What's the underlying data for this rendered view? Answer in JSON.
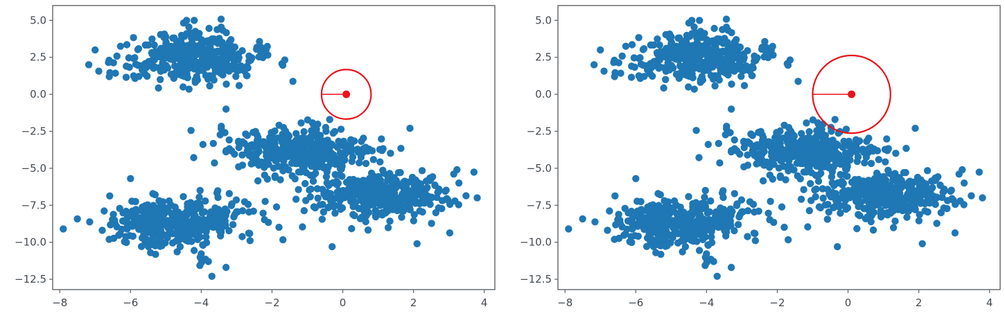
{
  "chart_data": [
    {
      "type": "scatter",
      "title": "",
      "xlabel": "",
      "ylabel": "",
      "xlim": [
        -8.2,
        4.3
      ],
      "ylim": [
        -13.2,
        6.0
      ],
      "xticks": [
        "−8",
        "−6",
        "−4",
        "−2",
        "0",
        "2",
        "4"
      ],
      "xtick_values": [
        -8,
        -6,
        -4,
        -2,
        0,
        2,
        4
      ],
      "yticks": [
        "5.0",
        "2.5",
        "0.0",
        "−2.5",
        "−5.0",
        "−7.5",
        "−10.0",
        "−12.5"
      ],
      "ytick_values": [
        5.0,
        2.5,
        0.0,
        -2.5,
        -5.0,
        -7.5,
        -10.0,
        -12.5
      ],
      "grid": false,
      "marker_color": "#1f77b4",
      "clusters": [
        {
          "center": [
            -4.3,
            2.5
          ],
          "spread": [
            1.0,
            0.85
          ],
          "count": 380
        },
        {
          "center": [
            -1.2,
            -3.9
          ],
          "spread": [
            1.0,
            0.85
          ],
          "count": 380
        },
        {
          "center": [
            1.0,
            -6.8
          ],
          "spread": [
            1.0,
            0.85
          ],
          "count": 380
        },
        {
          "center": [
            -4.6,
            -8.6
          ],
          "spread": [
            1.0,
            0.85
          ],
          "count": 380
        }
      ],
      "notable_points": [
        [
          -7.9,
          -9.1
        ],
        [
          -7.0,
          3.0
        ],
        [
          -6.6,
          1.2
        ],
        [
          -4.2,
          5.0
        ],
        [
          3.8,
          -7.0
        ],
        [
          -3.7,
          -12.3
        ],
        [
          -0.3,
          -10.3
        ],
        [
          2.1,
          -10.1
        ],
        [
          1.9,
          -2.3
        ],
        [
          -3.3,
          -1.0
        ],
        [
          -3.8,
          -11.3
        ],
        [
          -3.3,
          -11.7
        ],
        [
          -6.0,
          -5.7
        ]
      ],
      "query_point": {
        "x": 0.1,
        "y": 0.0,
        "radius": 0.7,
        "color": "#e8141c"
      }
    },
    {
      "type": "scatter",
      "title": "",
      "xlabel": "",
      "ylabel": "",
      "xlim": [
        -8.2,
        4.3
      ],
      "ylim": [
        -13.2,
        6.0
      ],
      "xticks": [
        "−8",
        "−6",
        "−4",
        "−2",
        "0",
        "2",
        "4"
      ],
      "xtick_values": [
        -8,
        -6,
        -4,
        -2,
        0,
        2,
        4
      ],
      "yticks": [
        "5.0",
        "2.5",
        "0.0",
        "−2.5",
        "−5.0",
        "−7.5",
        "−10.0",
        "−12.5"
      ],
      "ytick_values": [
        5.0,
        2.5,
        0.0,
        -2.5,
        -5.0,
        -7.5,
        -10.0,
        -12.5
      ],
      "grid": false,
      "marker_color": "#1f77b4",
      "clusters": [
        {
          "center": [
            -4.3,
            2.5
          ],
          "spread": [
            1.0,
            0.85
          ],
          "count": 380
        },
        {
          "center": [
            -1.2,
            -3.9
          ],
          "spread": [
            1.0,
            0.85
          ],
          "count": 380
        },
        {
          "center": [
            1.0,
            -6.8
          ],
          "spread": [
            1.0,
            0.85
          ],
          "count": 380
        },
        {
          "center": [
            -4.6,
            -8.6
          ],
          "spread": [
            1.0,
            0.85
          ],
          "count": 380
        }
      ],
      "notable_points": [
        [
          -7.9,
          -9.1
        ],
        [
          -7.0,
          3.0
        ],
        [
          -6.6,
          1.2
        ],
        [
          -4.2,
          5.0
        ],
        [
          3.8,
          -7.0
        ],
        [
          -3.7,
          -12.3
        ],
        [
          -0.3,
          -10.3
        ],
        [
          2.1,
          -10.1
        ],
        [
          1.9,
          -2.3
        ],
        [
          -3.3,
          -1.0
        ],
        [
          -3.8,
          -11.3
        ],
        [
          -3.3,
          -11.7
        ],
        [
          -6.0,
          -5.7
        ]
      ],
      "query_point": {
        "x": 0.1,
        "y": 0.0,
        "radius": 1.1,
        "color": "#e8141c"
      }
    }
  ]
}
